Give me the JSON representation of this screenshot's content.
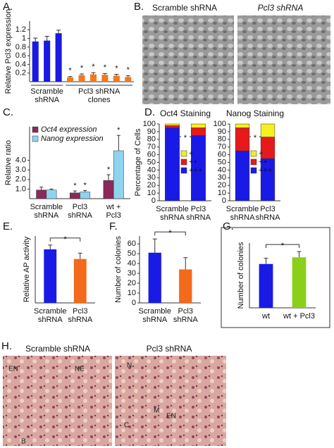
{
  "chart_data": [
    {
      "type": "bar",
      "panel": "A.",
      "ylabel": "Relative Pcl3 expression",
      "categories": [
        null,
        null,
        null,
        null,
        null,
        null,
        null,
        null,
        null
      ],
      "values": [
        0.93,
        0.95,
        1.12,
        0.1,
        0.15,
        0.17,
        0.16,
        0.14,
        0.11
      ],
      "errors": [
        0.08,
        0.1,
        0.07,
        0.02,
        0.03,
        0.04,
        0.03,
        0.03,
        0.03
      ],
      "colors": [
        "#1a1ae0",
        "#1a1ae0",
        "#1a1ae0",
        "#f07a20",
        "#f07a20",
        "#f07a20",
        "#f07a20",
        "#f07a20",
        "#f07a20"
      ],
      "value_annotations": [
        null,
        null,
        null,
        "*",
        "*",
        "*",
        "*",
        "*",
        "*"
      ],
      "group_labels": [
        [
          "Scramble",
          "shRNA"
        ],
        [
          "Pcl3 shRNA",
          "clones"
        ]
      ],
      "ylim": [
        0,
        1.4
      ],
      "yticks": [
        0.2,
        0.4,
        0.6,
        0.8,
        1,
        1.2
      ]
    },
    {
      "type": "grouped_bar",
      "panel": "C.",
      "ylabel": "Relative ratio",
      "categories": [
        [
          "Scramble",
          "shRNA"
        ],
        [
          "Pcl3",
          "shRNA"
        ],
        [
          "wt +",
          "Pcl3"
        ]
      ],
      "series": [
        {
          "name": "Oct4 expression",
          "color": "#8b2a5a",
          "values": [
            0.9,
            0.6,
            1.9
          ],
          "errors": [
            0.3,
            0.2,
            0.6
          ],
          "annotations": [
            null,
            "*",
            "*"
          ]
        },
        {
          "name": "Nanog expression",
          "color": "#8fd3ef",
          "values": [
            0.9,
            0.7,
            5.0
          ],
          "errors": [
            0.1,
            0.15,
            1.6
          ],
          "annotations": [
            null,
            "*",
            "*"
          ]
        }
      ],
      "ylim": [
        0,
        7.5
      ],
      "yticks": [
        {
          "value": 1,
          "label": "1.0"
        },
        {
          "value": 2,
          "label": "2.0"
        },
        {
          "value": 3,
          "label": "3.0"
        },
        {
          "value": 4,
          "label": "4.0"
        }
      ]
    },
    {
      "type": "stacked_bar",
      "panel": "D.",
      "title": "Oct4 Staining",
      "ylabel": "Percentage of Cells",
      "categories": [
        [
          "Scramble",
          "shRNA"
        ],
        [
          "Pcl3",
          "shRNA"
        ]
      ],
      "series": [
        {
          "name": "+++",
          "color": "#1a1ae6",
          "values": [
            95,
            85
          ]
        },
        {
          "name": "++",
          "color": "#e61a1a",
          "values": [
            3,
            10
          ]
        },
        {
          "name": "+",
          "color": "#f5f020",
          "values": [
            2,
            5
          ]
        }
      ],
      "annotation": "*",
      "ylim": [
        0,
        100
      ],
      "yticks": [
        0,
        10,
        20,
        30,
        40,
        50,
        60,
        70,
        80,
        90,
        100
      ]
    },
    {
      "type": "stacked_bar",
      "title": "Nanog Staining",
      "categories": [
        [
          "Scramble",
          "shRNA"
        ],
        [
          "Pcl3",
          "shRNA"
        ]
      ],
      "series": [
        {
          "name": "+++",
          "color": "#1a1ae6",
          "values": [
            65,
            55
          ]
        },
        {
          "name": "++",
          "color": "#e61a1a",
          "values": [
            30,
            28
          ]
        },
        {
          "name": "+",
          "color": "#f5f020",
          "values": [
            5,
            17
          ]
        }
      ],
      "annotation": "*",
      "ylim": [
        0,
        100
      ],
      "yticks": [
        0,
        10,
        20,
        30,
        40,
        50,
        60,
        70,
        80,
        90,
        100
      ]
    },
    {
      "type": "bar",
      "panel": "E.",
      "ylabel": "Relative AP activity",
      "categories": [
        [
          "Scramble",
          "shRNA"
        ],
        [
          "Pcl3",
          "shRNA"
        ]
      ],
      "values": [
        1.0,
        0.82
      ],
      "errors": [
        0.08,
        0.11
      ],
      "colors": [
        "#1a1ae6",
        "#f26a1a"
      ],
      "annotation": "*",
      "ylim": [
        0,
        1.25
      ]
    },
    {
      "type": "bar",
      "panel": "F.",
      "ylabel": "Number of colonies",
      "categories": [
        [
          "Scramble",
          "shRNA"
        ],
        [
          "Pcl3",
          "shRNA"
        ]
      ],
      "values": [
        51,
        34
      ],
      "errors": [
        14,
        12
      ],
      "colors": [
        "#1a1ae6",
        "#f26a1a"
      ],
      "annotation": "*",
      "ylim": [
        0,
        68
      ],
      "yticks": [
        0,
        10,
        20,
        30,
        40,
        50,
        60
      ]
    },
    {
      "type": "bar",
      "panel": "G.",
      "ylabel": "Number of colonies",
      "categories": [
        "wt",
        "wt + Pcl3"
      ],
      "values": [
        46,
        53
      ],
      "errors": [
        6,
        6
      ],
      "colors": [
        "#1a1ae6",
        "#8ccf1a"
      ],
      "annotation": "*",
      "ylim": [
        0,
        68
      ],
      "frame": true
    }
  ],
  "images": [
    {
      "panel": "B.",
      "captions": [
        "Scramble shRNA",
        "Pcl3 shRNA"
      ]
    },
    {
      "panel": "H.",
      "captions": [
        "Scramble shRNA",
        "Pcl3 shRNA"
      ],
      "labels": [
        "EN",
        "NE",
        "B",
        "N",
        "M",
        "EN",
        "C"
      ]
    }
  ]
}
